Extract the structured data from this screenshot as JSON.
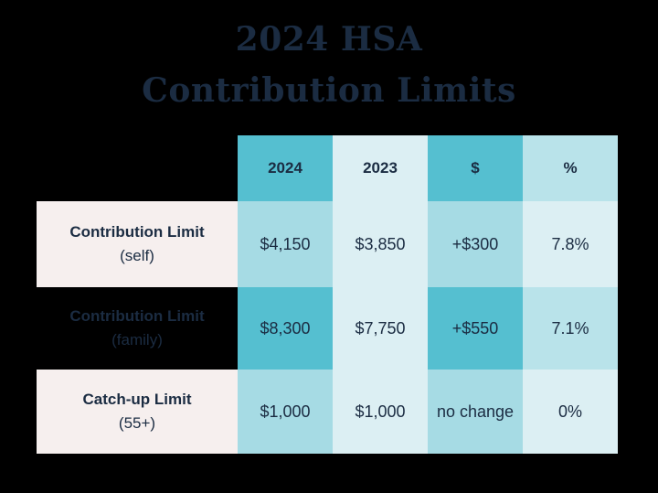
{
  "title": {
    "line1": "2024 HSA",
    "line2": "Contribution Limits"
  },
  "columns": [
    "2024",
    "2023",
    "$",
    "%"
  ],
  "rows": [
    {
      "label": "Contribution Limit",
      "sublabel": "(self)",
      "values": [
        "$4,150",
        "$3,850",
        "+$300",
        "7.8%"
      ]
    },
    {
      "label": "Contribution Limit",
      "sublabel": "(family)",
      "values": [
        "$8,300",
        "$7,750",
        "+$550",
        "7.1%"
      ]
    },
    {
      "label": "Catch-up Limit",
      "sublabel": "(55+)",
      "values": [
        "$1,000",
        "$1,000",
        "no change",
        "0%"
      ]
    }
  ],
  "colors": {
    "background": "#000000",
    "text": "#1b2c42",
    "label_bg": "#f6efee",
    "teal_dark": "#55bfd0",
    "teal_mid": "#a6dbe4",
    "teal_light": "#dceff3",
    "teal_pale": "#b9e3ea"
  }
}
